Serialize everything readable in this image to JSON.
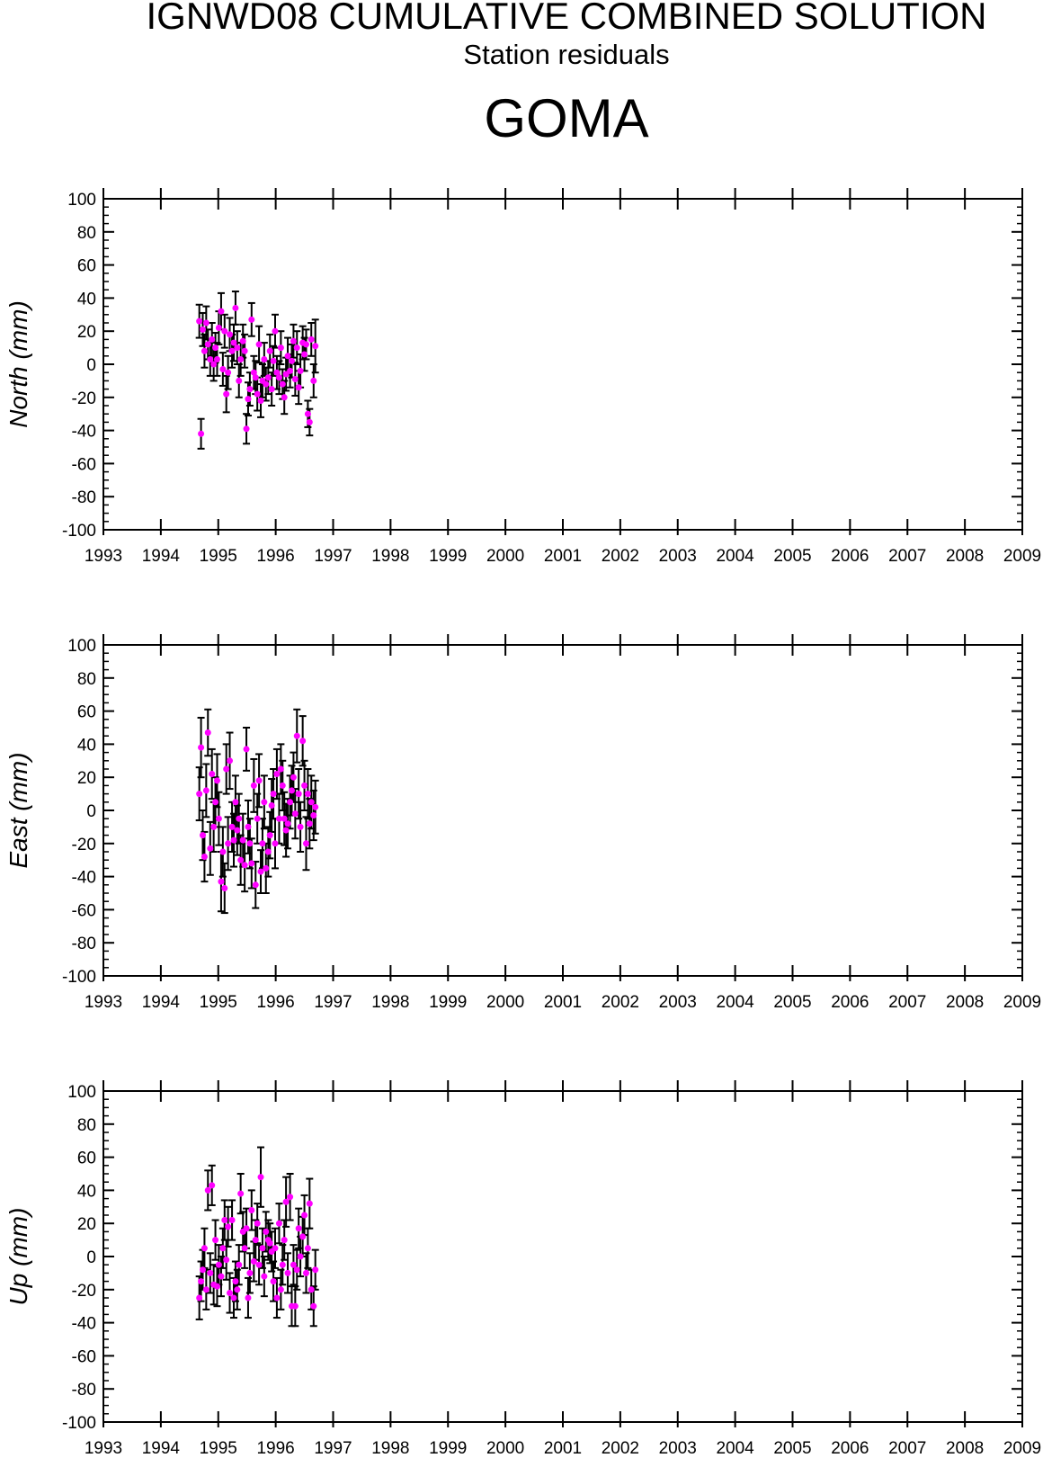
{
  "header": {
    "title": "IGNWD08 CUMULATIVE COMBINED SOLUTION",
    "subtitle": "Station residuals",
    "station": "GOMA"
  },
  "colors": {
    "point": "#ff00ff",
    "errorbar": "#000000",
    "axis": "#000000"
  },
  "chart_data": [
    {
      "type": "scatter",
      "ylabel": "North (mm)",
      "xlim": [
        1993,
        2009
      ],
      "ylim": [
        -100,
        100
      ],
      "x_ticks": [
        "1993",
        "1994",
        "1995",
        "1996",
        "1997",
        "1998",
        "1999",
        "2000",
        "2001",
        "2002",
        "2003",
        "2004",
        "2005",
        "2006",
        "2007",
        "2008",
        "2009"
      ],
      "y_ticks": [
        "100",
        "80",
        "60",
        "40",
        "20",
        "0",
        "-20",
        "-40",
        "-60",
        "-80",
        "-100"
      ],
      "error_bars": true,
      "x": [
        1994.67,
        1994.7,
        1994.73,
        1994.76,
        1994.79,
        1994.82,
        1994.86,
        1994.89,
        1994.92,
        1994.95,
        1994.98,
        1995.01,
        1995.05,
        1995.08,
        1995.11,
        1995.14,
        1995.17,
        1995.2,
        1995.24,
        1995.27,
        1995.3,
        1995.33,
        1995.36,
        1995.39,
        1995.43,
        1995.46,
        1995.49,
        1995.52,
        1995.55,
        1995.58,
        1995.62,
        1995.65,
        1995.68,
        1995.71,
        1995.74,
        1995.77,
        1995.8,
        1995.83,
        1995.87,
        1995.9,
        1995.93,
        1995.96,
        1995.99,
        1996.02,
        1996.06,
        1996.09,
        1996.12,
        1996.15,
        1996.18,
        1996.21,
        1996.25,
        1996.28,
        1996.31,
        1996.34,
        1996.37,
        1996.4,
        1996.43,
        1996.47,
        1996.5,
        1996.53,
        1996.56,
        1996.59,
        1996.62,
        1996.66,
        1996.69
      ],
      "values": [
        26,
        -42,
        21,
        8,
        25,
        12,
        3,
        15,
        0,
        10,
        3,
        22,
        32,
        -3,
        20,
        -18,
        -5,
        18,
        8,
        13,
        34,
        10,
        -10,
        3,
        14,
        8,
        -39,
        -21,
        -15,
        27,
        -5,
        -8,
        -18,
        12,
        -22,
        -10,
        3,
        -12,
        -8,
        8,
        -15,
        2,
        20,
        -5,
        -8,
        10,
        -12,
        -20,
        -6,
        5,
        -4,
        2,
        14,
        -9,
        10,
        -14,
        -4,
        13,
        6,
        12,
        -30,
        -35,
        15,
        -10,
        11
      ],
      "errors": [
        10,
        9,
        10,
        10,
        10,
        9,
        10,
        10,
        10,
        9,
        10,
        10,
        11,
        10,
        10,
        11,
        10,
        10,
        10,
        11,
        10,
        10,
        10,
        10,
        10,
        10,
        9,
        10,
        10,
        10,
        10,
        10,
        10,
        11,
        10,
        10,
        10,
        10,
        10,
        10,
        10,
        9,
        10,
        10,
        10,
        10,
        9,
        10,
        10,
        11,
        10,
        10,
        10,
        10,
        10,
        10,
        10,
        10,
        10,
        9,
        8,
        8,
        10,
        10,
        16
      ]
    },
    {
      "type": "scatter",
      "ylabel": "East (mm)",
      "xlim": [
        1993,
        2009
      ],
      "ylim": [
        -100,
        100
      ],
      "x_ticks": [
        "1993",
        "1994",
        "1995",
        "1996",
        "1997",
        "1998",
        "1999",
        "2000",
        "2001",
        "2002",
        "2003",
        "2004",
        "2005",
        "2006",
        "2007",
        "2008",
        "2009"
      ],
      "y_ticks": [
        "100",
        "80",
        "60",
        "40",
        "20",
        "0",
        "-20",
        "-40",
        "-60",
        "-80",
        "-100"
      ],
      "error_bars": true,
      "x": [
        1994.67,
        1994.7,
        1994.73,
        1994.76,
        1994.79,
        1994.82,
        1994.86,
        1994.89,
        1994.92,
        1994.95,
        1994.98,
        1995.01,
        1995.05,
        1995.08,
        1995.11,
        1995.14,
        1995.17,
        1995.2,
        1995.24,
        1995.27,
        1995.3,
        1995.33,
        1995.36,
        1995.39,
        1995.43,
        1995.46,
        1995.49,
        1995.52,
        1995.55,
        1995.58,
        1995.62,
        1995.65,
        1995.68,
        1995.71,
        1995.74,
        1995.77,
        1995.8,
        1995.83,
        1995.87,
        1995.9,
        1995.93,
        1995.96,
        1995.99,
        1996.02,
        1996.06,
        1996.09,
        1996.12,
        1996.15,
        1996.18,
        1996.21,
        1996.25,
        1996.28,
        1996.31,
        1996.34,
        1996.37,
        1996.4,
        1996.43,
        1996.47,
        1996.5,
        1996.53,
        1996.56,
        1996.59,
        1996.62,
        1996.66,
        1996.69
      ],
      "values": [
        10,
        38,
        -15,
        -28,
        12,
        47,
        -23,
        22,
        -10,
        5,
        18,
        -5,
        -43,
        -25,
        -47,
        25,
        -20,
        30,
        -10,
        -18,
        5,
        -12,
        -5,
        -30,
        -18,
        -33,
        37,
        -10,
        -20,
        -32,
        15,
        -45,
        -5,
        18,
        -37,
        -20,
        5,
        -35,
        -25,
        -15,
        3,
        10,
        -20,
        22,
        -5,
        25,
        15,
        -5,
        -12,
        -8,
        5,
        12,
        20,
        -2,
        45,
        10,
        -10,
        42,
        15,
        -20,
        10,
        -8,
        5,
        -3,
        2
      ],
      "errors": [
        16,
        18,
        15,
        15,
        16,
        14,
        16,
        15,
        15,
        15,
        16,
        16,
        18,
        15,
        15,
        15,
        16,
        17,
        15,
        16,
        16,
        15,
        15,
        15,
        16,
        16,
        13,
        16,
        15,
        15,
        16,
        14,
        15,
        16,
        13,
        15,
        16,
        15,
        15,
        14,
        16,
        15,
        15,
        15,
        15,
        15,
        15,
        16,
        16,
        15,
        16,
        15,
        15,
        15,
        16,
        15,
        15,
        15,
        15,
        16,
        15,
        15,
        16,
        15,
        16
      ]
    },
    {
      "type": "scatter",
      "ylabel": "Up (mm)",
      "xlim": [
        1993,
        2009
      ],
      "ylim": [
        -100,
        100
      ],
      "x_ticks": [
        "1993",
        "1994",
        "1995",
        "1996",
        "1997",
        "1998",
        "1999",
        "2000",
        "2001",
        "2002",
        "2003",
        "2004",
        "2005",
        "2006",
        "2007",
        "2008",
        "2009"
      ],
      "y_ticks": [
        "100",
        "80",
        "60",
        "40",
        "20",
        "0",
        "-20",
        "-40",
        "-60",
        "-80",
        "-100"
      ],
      "error_bars": true,
      "x": [
        1994.67,
        1994.7,
        1994.73,
        1994.76,
        1994.79,
        1994.82,
        1994.86,
        1994.89,
        1994.92,
        1994.95,
        1994.98,
        1995.01,
        1995.05,
        1995.08,
        1995.11,
        1995.14,
        1995.17,
        1995.2,
        1995.24,
        1995.27,
        1995.3,
        1995.33,
        1995.36,
        1995.39,
        1995.43,
        1995.46,
        1995.49,
        1995.52,
        1995.55,
        1995.58,
        1995.62,
        1995.65,
        1995.68,
        1995.71,
        1995.74,
        1995.77,
        1995.8,
        1995.83,
        1995.87,
        1995.9,
        1995.93,
        1995.96,
        1995.99,
        1996.02,
        1996.06,
        1996.09,
        1996.12,
        1996.15,
        1996.18,
        1996.21,
        1996.25,
        1996.28,
        1996.31,
        1996.34,
        1996.37,
        1996.4,
        1996.43,
        1996.47,
        1996.5,
        1996.53,
        1996.56,
        1996.59,
        1996.62,
        1996.66,
        1996.69
      ],
      "values": [
        -25,
        -15,
        -8,
        5,
        -20,
        40,
        -10,
        43,
        -17,
        10,
        -18,
        -5,
        -12,
        5,
        22,
        -2,
        18,
        -22,
        22,
        -25,
        -15,
        -20,
        -5,
        38,
        15,
        5,
        17,
        -25,
        -10,
        28,
        -3,
        10,
        20,
        -5,
        48,
        5,
        -12,
        15,
        10,
        8,
        3,
        -15,
        5,
        -25,
        20,
        -20,
        -5,
        10,
        33,
        -10,
        36,
        -30,
        -5,
        -30,
        -8,
        17,
        0,
        12,
        25,
        -10,
        5,
        32,
        -20,
        -30,
        -8
      ],
      "errors": [
        13,
        12,
        12,
        12,
        12,
        12,
        12,
        12,
        12,
        12,
        12,
        12,
        12,
        12,
        12,
        12,
        12,
        12,
        12,
        12,
        12,
        12,
        12,
        12,
        12,
        12,
        12,
        12,
        12,
        12,
        12,
        12,
        12,
        12,
        18,
        12,
        12,
        12,
        12,
        12,
        12,
        12,
        12,
        12,
        12,
        12,
        12,
        12,
        15,
        12,
        14,
        12,
        12,
        12,
        12,
        12,
        12,
        12,
        12,
        12,
        12,
        15,
        12,
        12,
        12
      ]
    }
  ]
}
